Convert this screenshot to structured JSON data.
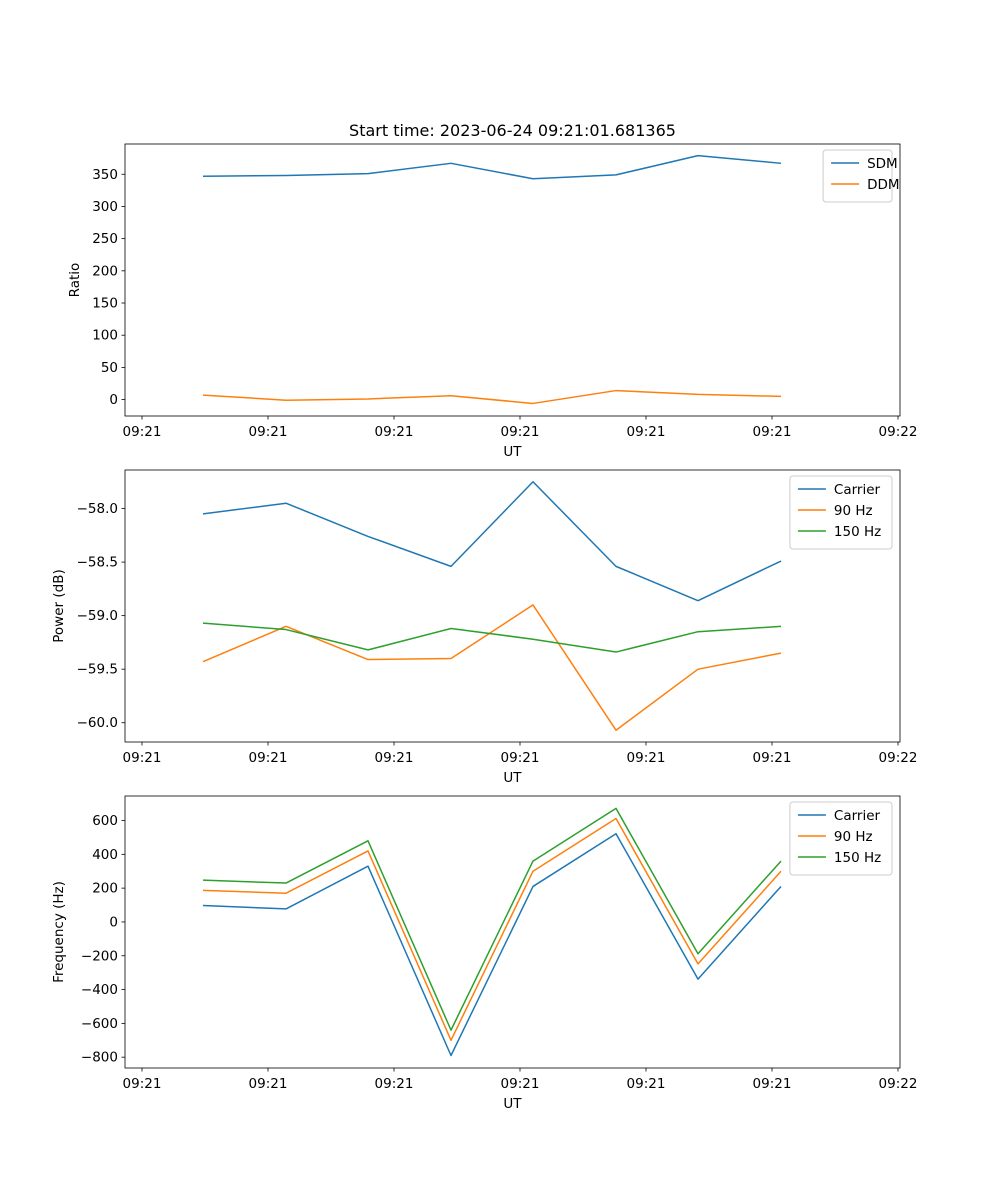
{
  "colors": {
    "blue": "#1f77b4",
    "orange": "#ff7f0e",
    "green": "#2ca02c"
  },
  "chart_data": [
    {
      "type": "line",
      "title": "Start time: 2023-06-24 09:21:01.681365",
      "xlabel": "UT",
      "ylabel": "Ratio",
      "x_tick_labels": [
        "09:21",
        "09:21",
        "09:21",
        "09:21",
        "09:21",
        "09:21",
        "09:22"
      ],
      "y_ticks": [
        0,
        50,
        100,
        150,
        200,
        250,
        300,
        350
      ],
      "ylim": [
        -25.5,
        397
      ],
      "legend_position": "top-right",
      "grid": false,
      "series": [
        {
          "name": "SDM",
          "color": "#1f77b4",
          "values": [
            347,
            348,
            351,
            367,
            343,
            349,
            379,
            367
          ]
        },
        {
          "name": "DDM",
          "color": "#ff7f0e",
          "values": [
            7,
            -1,
            1,
            6,
            -6,
            14,
            8,
            5
          ]
        }
      ]
    },
    {
      "type": "line",
      "title": "",
      "xlabel": "UT",
      "ylabel": "Power (dB)",
      "x_tick_labels": [
        "09:21",
        "09:21",
        "09:21",
        "09:21",
        "09:21",
        "09:21",
        "09:22"
      ],
      "y_ticks": [
        -60.0,
        -59.5,
        -59.0,
        -58.5,
        -58.0
      ],
      "y_tick_labels": [
        "−60.0",
        "−59.5",
        "−59.0",
        "−58.5",
        "−58.0"
      ],
      "ylim": [
        -60.18,
        -57.64
      ],
      "legend_position": "top-right",
      "grid": false,
      "series": [
        {
          "name": "Carrier",
          "color": "#1f77b4",
          "values": [
            -58.05,
            -57.95,
            -58.26,
            -58.54,
            -57.75,
            -58.54,
            -58.86,
            -58.49
          ]
        },
        {
          "name": "90 Hz",
          "color": "#ff7f0e",
          "values": [
            -59.43,
            -59.1,
            -59.41,
            -59.4,
            -58.9,
            -60.07,
            -59.5,
            -59.35
          ]
        },
        {
          "name": "150 Hz",
          "color": "#2ca02c",
          "values": [
            -59.07,
            -59.13,
            -59.32,
            -59.12,
            -59.22,
            -59.34,
            -59.15,
            -59.1
          ]
        }
      ]
    },
    {
      "type": "line",
      "title": "",
      "xlabel": "UT",
      "ylabel": "Frequency (Hz)",
      "x_tick_labels": [
        "09:21",
        "09:21",
        "09:21",
        "09:21",
        "09:21",
        "09:21",
        "09:22"
      ],
      "y_ticks": [
        -800,
        -600,
        -400,
        -200,
        0,
        200,
        400,
        600
      ],
      "y_tick_labels": [
        "−800",
        "−600",
        "−400",
        "−200",
        "0",
        "200",
        "400",
        "600"
      ],
      "ylim": [
        -864,
        745
      ],
      "legend_position": "top-right",
      "grid": false,
      "series": [
        {
          "name": "Carrier",
          "color": "#1f77b4",
          "values": [
            97,
            77,
            330,
            -790,
            210,
            522,
            -338,
            210
          ]
        },
        {
          "name": "90 Hz",
          "color": "#ff7f0e",
          "values": [
            187,
            170,
            420,
            -700,
            300,
            612,
            -248,
            300
          ]
        },
        {
          "name": "150 Hz",
          "color": "#2ca02c",
          "values": [
            247,
            230,
            480,
            -640,
            360,
            672,
            -188,
            360
          ]
        }
      ]
    }
  ]
}
